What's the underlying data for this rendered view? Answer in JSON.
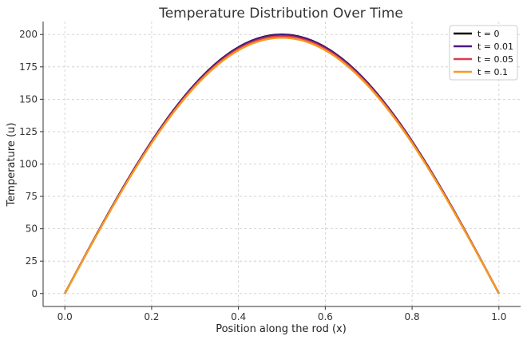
{
  "chart_data": {
    "type": "line",
    "title": "Temperature Distribution Over Time",
    "xlabel": "Position along the rod (x)",
    "ylabel": "Temperature (u)",
    "xlim": [
      -0.05,
      1.05
    ],
    "ylim": [
      -10,
      210
    ],
    "xticks": [
      0.0,
      0.2,
      0.4,
      0.6,
      0.8,
      1.0
    ],
    "xtick_labels": [
      "0.0",
      "0.2",
      "0.4",
      "0.6",
      "0.8",
      "1.0"
    ],
    "yticks": [
      0,
      25,
      50,
      75,
      100,
      125,
      150,
      175,
      200
    ],
    "ytick_labels": [
      "0",
      "25",
      "50",
      "75",
      "100",
      "125",
      "150",
      "175",
      "200"
    ],
    "grid": true,
    "legend_position": "top-right",
    "x": [
      0.0,
      0.05,
      0.1,
      0.15,
      0.2,
      0.25,
      0.3,
      0.35,
      0.4,
      0.45,
      0.5,
      0.55,
      0.6,
      0.65,
      0.7,
      0.75,
      0.8,
      0.85,
      0.9,
      0.95,
      1.0
    ],
    "series": [
      {
        "name": "t = 0",
        "color": "#000000",
        "values": [
          0,
          19.0,
          36.0,
          51.0,
          64.0,
          75.0,
          84.0,
          91.0,
          96.0,
          99.0,
          100.0,
          99.0,
          96.0,
          91.0,
          84.0,
          75.0,
          64.0,
          51.0,
          36.0,
          19.0,
          0
        ],
        "scale": 200.0
      },
      {
        "name": "t = 0.01",
        "color": "#4b1a82",
        "values": [
          0,
          19.0,
          36.0,
          51.0,
          64.0,
          75.0,
          84.0,
          91.0,
          96.0,
          99.0,
          100.0,
          99.0,
          96.0,
          91.0,
          84.0,
          75.0,
          64.0,
          51.0,
          36.0,
          19.0,
          0
        ],
        "scale": 199.8
      },
      {
        "name": "t = 0.05",
        "color": "#dd3a4a",
        "values": [
          0,
          19.0,
          36.0,
          51.0,
          64.0,
          75.0,
          84.0,
          91.0,
          96.0,
          99.0,
          100.0,
          99.0,
          96.0,
          91.0,
          84.0,
          75.0,
          64.0,
          51.0,
          36.0,
          19.0,
          0
        ],
        "scale": 198.6
      },
      {
        "name": "t = 0.1",
        "color": "#f59a22",
        "values": [
          0,
          19.0,
          36.0,
          51.0,
          64.0,
          75.0,
          84.0,
          91.0,
          96.0,
          99.0,
          100.0,
          99.0,
          96.0,
          91.0,
          84.0,
          75.0,
          64.0,
          51.0,
          36.0,
          19.0,
          0
        ],
        "scale": 197.5
      }
    ]
  }
}
